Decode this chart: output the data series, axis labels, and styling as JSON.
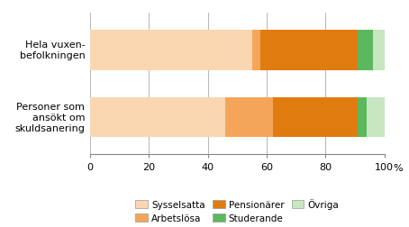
{
  "categories": [
    "Hela vuxen-\nbefolkningen",
    "Personer som\nansökt om\nskuldsanering"
  ],
  "series": [
    {
      "label": "Sysselsatta",
      "values": [
        55,
        46
      ],
      "color": "#fad7b0"
    },
    {
      "label": "Arbetslösa",
      "values": [
        3,
        16
      ],
      "color": "#f5a55a"
    },
    {
      "label": "Pensionärer",
      "values": [
        33,
        29
      ],
      "color": "#e07b10"
    },
    {
      "label": "Studerande",
      "values": [
        5,
        3
      ],
      "color": "#5cb85c"
    },
    {
      "label": "Övriga",
      "values": [
        4,
        6
      ],
      "color": "#c8e6c0"
    }
  ],
  "xlim": [
    0,
    100
  ],
  "xticks": [
    0,
    20,
    40,
    60,
    80,
    100
  ],
  "grid_color": "#aaaaaa",
  "bar_height": 0.6,
  "figure_facecolor": "#ffffff",
  "axes_facecolor": "#ffffff",
  "border_color": "#888888",
  "figsize": [
    4.54,
    2.53
  ],
  "dpi": 100
}
